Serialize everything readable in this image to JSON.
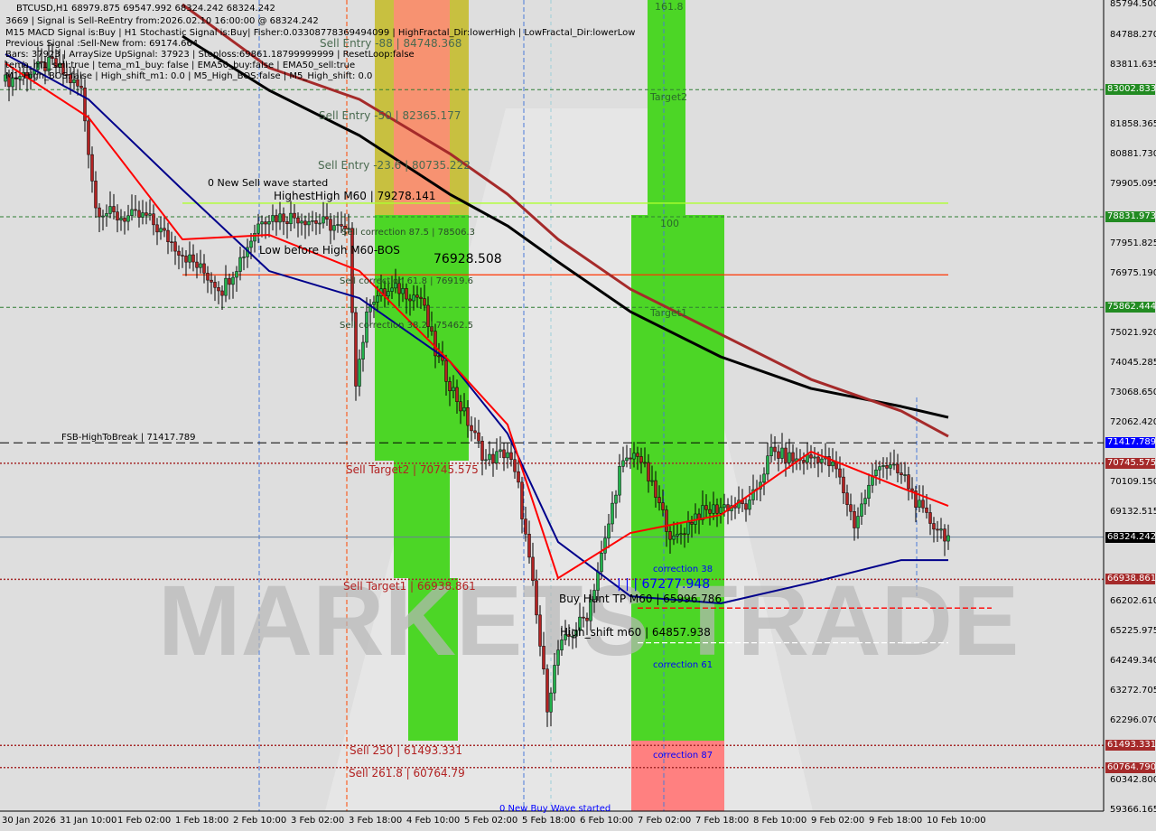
{
  "header": {
    "symbol_line": "BTCUSD,H1  68979.875 69547.992 68324.242 68324.242",
    "lines": [
      "3669 | Signal is Sell-ReEntry from:2026.02.10 16:00:00 @ 68324.242",
      "M15 MACD Signal is:Buy | H1 Stochastic Signal is:Buy| Fisher:0.03308778369494099 | HighFractal_Dir:lowerHigh | LowFractal_Dir:lowerLow",
      "Previous Signal :Sell-New from: 69174.664",
      "Bars: 37923 | ArraySize UpSignal: 37923 | Stoploss:69861.18799999999 | ResetLoop:false",
      "tema_m1_sell:true | tema_m1_buy: false | EMA50_buy:false | EMA50_sell:true",
      "M1_High_BOS:false | High_shift_m1: 0.0 | M5_High_BOS:false | M5_High_shift: 0.0"
    ]
  },
  "labels": {
    "sell_entry_88": "Sell Entry -88 | 84748.368",
    "sell_entry_50": "Sell Entry -50 | 82365.177",
    "sell_entry_236": "Sell Entry -23.6 | 80735.222",
    "new_sell_wave": "0 New Sell wave started",
    "highest_high": "HighestHigh    M60 | 79278.141",
    "sell_corr_875": "Sell correction 87.5 | 78506.3",
    "low_before_high": "Low before High   M60-BOS",
    "low_before_high_value": "76928.508",
    "sell_corr_618": "Sell correction 61.8 | 76919.6",
    "sell_corr_382": "Sell correction 38.2 | 75462.5",
    "fsb": "FSB-HighToBreak | 71417.789",
    "sell_target2": "Sell Target2 | 70745.575",
    "sell_target1": "Sell Target1 | 66938.861",
    "buy_hunt": "Buy Hunt TP M60 | 65996.786",
    "buy_level": "| | | 67277.948",
    "high_shift": "High_shift m60 | 64857.938",
    "correction_38": "correction 38",
    "correction_61": "correction 61",
    "correction_87": "correction 87",
    "sell_250": "Sell 250 | 61493.331",
    "sell_2618": "Sell 261.8 | 60764.79",
    "new_buy_wave": "0 New Buy Wave started",
    "fib_1618": "161.8",
    "fib_target2": "Target2",
    "fib_100": "100",
    "fib_target1": "Target1",
    "watermark": "MARKETS TRADE"
  },
  "chart_data": {
    "type": "candlestick",
    "symbol": "BTCUSD",
    "timeframe": "H1",
    "ylim": [
      59366.165,
      85794.5
    ],
    "y_ticks": [
      "85794.500",
      "84788.270",
      "83811.635",
      "82835.000",
      "81858.365",
      "80881.730",
      "79905.095",
      "78831.973",
      "77951.825",
      "76975.190",
      "75862.444",
      "75021.920",
      "74045.285",
      "73068.650",
      "72062.420",
      "71085.785",
      "70109.150",
      "69132.515",
      "68155.880",
      "67179.245",
      "66202.610",
      "65225.975",
      "64249.340",
      "63272.705",
      "62296.070",
      "61319.435",
      "60342.800",
      "59366.165"
    ],
    "x_ticks": [
      "30 Jan 2026",
      "31 Jan 10:00",
      "1 Feb 02:00",
      "1 Feb 18:00",
      "2 Feb 10:00",
      "3 Feb 02:00",
      "3 Feb 18:00",
      "4 Feb 10:00",
      "5 Feb 02:00",
      "5 Feb 18:00",
      "6 Feb 10:00",
      "7 Feb 02:00",
      "7 Feb 18:00",
      "8 Feb 10:00",
      "9 Feb 02:00",
      "9 Feb 18:00",
      "10 Feb 10:00"
    ],
    "close_path": [
      [
        "2026-01-30 19:00",
        83276
      ],
      [
        "2026-01-31 08:00",
        83868
      ],
      [
        "2026-01-31 16:00",
        82980
      ],
      [
        "2026-01-31 20:00",
        79128
      ],
      [
        "2026-02-01 02:00",
        78830
      ],
      [
        "2026-02-01 10:00",
        78830
      ],
      [
        "2026-02-01 20:00",
        77645
      ],
      [
        "2026-02-02 07:00",
        76460
      ],
      [
        "2026-02-02 13:00",
        77645
      ],
      [
        "2026-02-02 18:00",
        78830
      ],
      [
        "2026-02-03 04:00",
        78830
      ],
      [
        "2026-02-03 14:00",
        78534
      ],
      [
        "2026-02-03 18:00",
        78238
      ],
      [
        "2026-02-03 20:00",
        73498
      ],
      [
        "2026-02-04 00:00",
        76164
      ],
      [
        "2026-02-04 08:00",
        76460
      ],
      [
        "2026-02-04 14:00",
        76164
      ],
      [
        "2026-02-04 18:00",
        74387
      ],
      [
        "2026-02-05 01:00",
        72609
      ],
      [
        "2026-02-05 08:00",
        70831
      ],
      [
        "2026-02-05 14:00",
        71127
      ],
      [
        "2026-02-05 17:00",
        69942
      ],
      [
        "2026-02-05 21:00",
        66683
      ],
      [
        "2026-02-06 01:00",
        62831
      ],
      [
        "2026-02-06 04:00",
        64609
      ],
      [
        "2026-02-06 12:00",
        65794
      ],
      [
        "2026-02-06 17:00",
        68164
      ],
      [
        "2026-02-06 21:00",
        70535
      ],
      [
        "2026-02-07 02:00",
        71127
      ],
      [
        "2026-02-07 06:00",
        69942
      ],
      [
        "2026-02-07 12:00",
        68164
      ],
      [
        "2026-02-07 18:00",
        69053
      ],
      [
        "2026-02-08 02:00",
        69349
      ],
      [
        "2026-02-08 09:00",
        69349
      ],
      [
        "2026-02-08 15:00",
        71127
      ],
      [
        "2026-02-08 22:00",
        70831
      ],
      [
        "2026-02-09 04:00",
        70979
      ],
      [
        "2026-02-09 09:00",
        70535
      ],
      [
        "2026-02-09 14:00",
        68757
      ],
      [
        "2026-02-09 21:00",
        70831
      ],
      [
        "2026-02-10 04:00",
        70239
      ],
      [
        "2026-02-10 09:00",
        69053
      ],
      [
        "2026-02-10 16:00",
        68324.242
      ]
    ],
    "ma_times": [
      "2026-01-30 19:00",
      "2026-01-31 18:00",
      "2026-02-01 20:00",
      "2026-02-02 20:00",
      "2026-02-03 21:00",
      "2026-02-04 22:00",
      "2026-02-05 14:00",
      "2026-02-06 04:00",
      "2026-02-07 00:00",
      "2026-02-08 01:00",
      "2026-02-09 02:00",
      "2026-02-10 03:00",
      "2026-02-10 16:00"
    ],
    "ma_lines": [
      {
        "color": "#000000",
        "values": [
          null,
          null,
          84757,
          82980,
          81498,
          79572,
          78535,
          77350,
          75720,
          74239,
          73201,
          72609,
          72253
        ]
      },
      {
        "color": "#a52a2a",
        "values": [
          null,
          null,
          85794,
          83720,
          82683,
          80905,
          79572,
          78090,
          76460,
          74979,
          73498,
          72461,
          71631
        ]
      },
      {
        "color": "#00008b",
        "values": [
          84165,
          82683,
          79720,
          77053,
          76164,
          74090,
          71720,
          68164,
          66386,
          66150,
          66831,
          67571,
          67571
        ]
      },
      {
        "color": "#ff0000",
        "values": [
          83869,
          82091,
          78090,
          78238,
          77053,
          74090,
          72016,
          66979,
          68460,
          69053,
          71127,
          69942,
          69349
        ]
      }
    ],
    "levels": [
      {
        "price": 83002.833,
        "color": "#2e7d32",
        "style": "dashed",
        "tag": "83002.833",
        "tag_color": "#228b22"
      },
      {
        "price": 78831.973,
        "color": "#2e7d32",
        "style": "dashed",
        "tag": "78831.973",
        "tag_color": "#228b22"
      },
      {
        "price": 75862.444,
        "color": "#2e7d32",
        "style": "dashed",
        "tag": "75862.444",
        "tag_color": "#228b22"
      },
      {
        "price": 71417.789,
        "color": "#000000",
        "style": "longdash",
        "tag": "71417.789",
        "tag_color": "#0000ff"
      },
      {
        "price": 70745.575,
        "color": "#a52a2a",
        "style": "dotted",
        "tag": "70745.575",
        "tag_color": "#a52a2a"
      },
      {
        "price": 68324.242,
        "color": "#6a7f99",
        "style": "solid",
        "tag": "68324.242",
        "tag_color": "#000000"
      },
      {
        "price": 66938.861,
        "color": "#a52a2a",
        "style": "dotted",
        "tag": "66938.861",
        "tag_color": "#a52a2a"
      },
      {
        "price": 61493.331,
        "color": "#a52a2a",
        "style": "dotted",
        "tag": "61493.331",
        "tag_color": "#a52a2a"
      },
      {
        "price": 60764.79,
        "color": "#a52a2a",
        "style": "dotted",
        "tag": "60764.790",
        "tag_color": "#a52a2a"
      }
    ],
    "segments": [
      {
        "price": 79278.141,
        "color": "#adff2f",
        "from": "2026-02-01 20:00",
        "to": "2026-02-10 16:00"
      },
      {
        "price": 76928.508,
        "color": "#ff3300",
        "from": "2026-02-01 20:00",
        "to": "2026-02-10 16:00"
      },
      {
        "price": 65996.786,
        "color": "#ff0000",
        "from": "2026-02-07 02:00",
        "to": "2026-02-11 04:00",
        "style": "dashed"
      },
      {
        "price": 64857.938,
        "color": "#ffffff",
        "from": "2026-02-07 02:00",
        "to": "2026-02-10 16:00",
        "style": "dashed"
      }
    ],
    "colors": {
      "bull": "#22b14c",
      "bear": "#b22222",
      "zone_green": "#4cd626",
      "zone_red": "#ff7f7f",
      "zone_yellow": "#c8c040"
    }
  }
}
